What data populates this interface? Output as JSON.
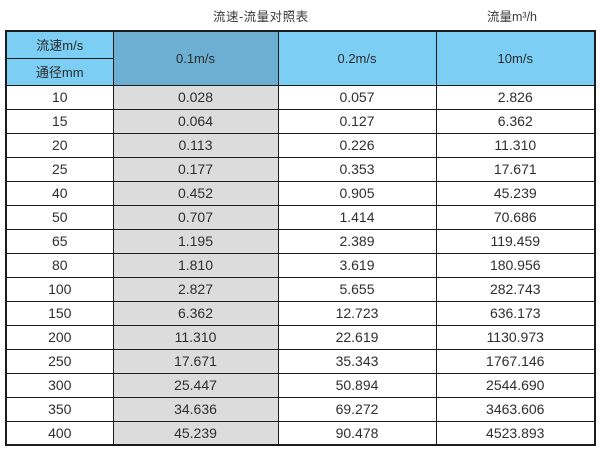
{
  "titles": {
    "main": "流速-流量对照表",
    "unit": "流量m³/h"
  },
  "chart_data": {
    "type": "table",
    "title": "流速-流量对照表",
    "flow_unit_label": "流量m³/h",
    "corner_labels": {
      "top": "流速m/s",
      "bottom": "通径mm"
    },
    "velocity_columns": [
      "0.1m/s",
      "0.2m/s",
      "10m/s"
    ],
    "columns": [
      "通径mm",
      "0.1m/s",
      "0.2m/s",
      "10m/s"
    ],
    "rows": [
      {
        "diameter": "10",
        "values": [
          "0.028",
          "0.057",
          "2.826"
        ]
      },
      {
        "diameter": "15",
        "values": [
          "0.064",
          "0.127",
          "6.362"
        ]
      },
      {
        "diameter": "20",
        "values": [
          "0.113",
          "0.226",
          "11.310"
        ]
      },
      {
        "diameter": "25",
        "values": [
          "0.177",
          "0.353",
          "17.671"
        ]
      },
      {
        "diameter": "40",
        "values": [
          "0.452",
          "0.905",
          "45.239"
        ]
      },
      {
        "diameter": "50",
        "values": [
          "0.707",
          "1.414",
          "70.686"
        ]
      },
      {
        "diameter": "65",
        "values": [
          "1.195",
          "2.389",
          "119.459"
        ]
      },
      {
        "diameter": "80",
        "values": [
          "1.810",
          "3.619",
          "180.956"
        ]
      },
      {
        "diameter": "100",
        "values": [
          "2.827",
          "5.655",
          "282.743"
        ]
      },
      {
        "diameter": "150",
        "values": [
          "6.362",
          "12.723",
          "636.173"
        ]
      },
      {
        "diameter": "200",
        "values": [
          "11.310",
          "22.619",
          "1130.973"
        ]
      },
      {
        "diameter": "250",
        "values": [
          "17.671",
          "35.343",
          "1767.146"
        ]
      },
      {
        "diameter": "300",
        "values": [
          "25.447",
          "50.894",
          "2544.690"
        ]
      },
      {
        "diameter": "350",
        "values": [
          "34.636",
          "69.272",
          "3463.606"
        ]
      },
      {
        "diameter": "400",
        "values": [
          "45.239",
          "90.478",
          "4523.893"
        ]
      }
    ]
  },
  "colors": {
    "header_blue": "#7CCEF4",
    "highlight_column_blue": "#6CAFD3",
    "highlight_column_gray": "#DCDCDC",
    "border": "#1C1C1C"
  }
}
